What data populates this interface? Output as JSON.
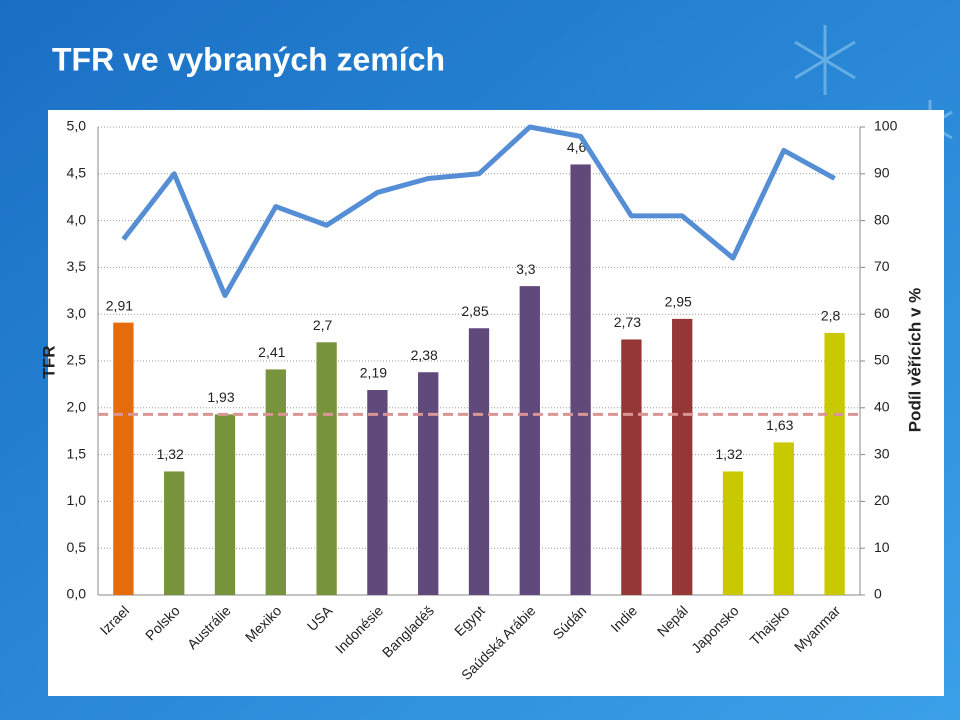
{
  "chart_data": {
    "type": "combo",
    "title": "TFR ve vybraných zemích",
    "y_label": "TFR",
    "y2_label": "Podíl věřících v %",
    "categories": [
      "Izrael",
      "Polsko",
      "Austrálie",
      "Mexiko",
      "USA",
      "Indonésie",
      "Bangladéš",
      "Egypt",
      "Saúdská Arábie",
      "Súdán",
      "Indie",
      "Nepál",
      "Japonsko",
      "Thajsko",
      "Myanmar"
    ],
    "series": [
      {
        "type": "bar",
        "values": [
          2.91,
          1.32,
          1.93,
          2.41,
          2.7,
          2.19,
          2.38,
          2.85,
          3.3,
          4.6,
          2.73,
          2.95,
          1.32,
          1.63,
          2.8
        ],
        "value_labels": [
          "2,91",
          "1,32",
          "1,93",
          "2,41",
          "2,7",
          "2,19",
          "2,38",
          "2,85",
          "3,3",
          "4,6",
          "2,73",
          "2,95",
          "1,32",
          "1,63",
          "2,8"
        ],
        "colors": [
          "#e46c0a",
          "#77933c",
          "#77933c",
          "#77933c",
          "#77933c",
          "#604a7b",
          "#604a7b",
          "#604a7b",
          "#604a7b",
          "#604a7b",
          "#953735",
          "#953735",
          "#c9c900",
          "#c9c900",
          "#c9c900"
        ]
      },
      {
        "type": "line",
        "axis": "y2",
        "color": "#558ed5",
        "values": [
          76,
          90,
          64,
          83,
          79,
          86,
          89,
          90,
          100,
          98,
          81,
          81,
          72,
          95,
          89
        ]
      }
    ],
    "reference_line": {
      "value": 1.93,
      "color": "#d99694"
    },
    "ylim": [
      0,
      5
    ],
    "yticks": [
      {
        "value": 0,
        "label": "0,0"
      },
      {
        "value": 0.5,
        "label": "0,5"
      },
      {
        "value": 1,
        "label": "1,0"
      },
      {
        "value": 1.5,
        "label": "1,5"
      },
      {
        "value": 2,
        "label": "2,0"
      },
      {
        "value": 2.5,
        "label": "2,5"
      },
      {
        "value": 3,
        "label": "3,0"
      },
      {
        "value": 3.5,
        "label": "3,5"
      },
      {
        "value": 4,
        "label": "4,0"
      },
      {
        "value": 4.5,
        "label": "4,5"
      },
      {
        "value": 5,
        "label": "5,0"
      }
    ],
    "y2lim": [
      0,
      100
    ],
    "y2ticks": [
      0,
      10,
      20,
      30,
      40,
      50,
      60,
      70,
      80,
      90,
      100
    ],
    "grid": true
  }
}
